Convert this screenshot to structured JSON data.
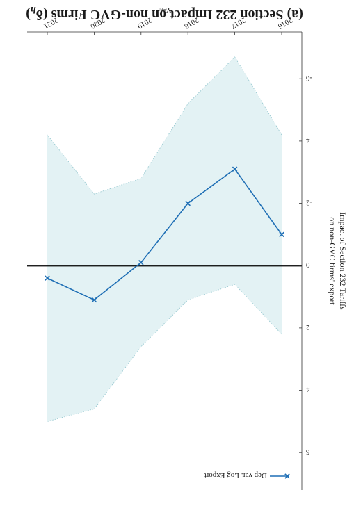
{
  "chart_data": {
    "type": "line",
    "title": "(a) Section 232 Impact on non-GVC Firms (δ",
    "title_subscript": "h",
    "title_suffix": ")",
    "xlabel": "Year",
    "ylabel_line1": "Impact of Section 232 Tariffs",
    "ylabel_line2": "on non-GVC firms' export",
    "x": [
      "2016",
      "2017",
      "2018",
      "2019",
      "2020",
      "2021"
    ],
    "series": [
      {
        "name": "Dep var. Log Export",
        "values": [
          -1.0,
          -3.1,
          -2.0,
          -0.1,
          1.1,
          0.4
        ],
        "ci_upper": [
          2.2,
          0.6,
          1.1,
          2.6,
          4.6,
          5.0
        ],
        "ci_lower": [
          -4.2,
          -6.7,
          -5.2,
          -2.8,
          -2.3,
          -4.2
        ],
        "color": "#1f6fb5",
        "band_color": "#e3f2f4"
      }
    ],
    "yticks": [
      6,
      4,
      2,
      0,
      -2,
      -4,
      -6
    ],
    "ytick_labels": [
      "6",
      "4",
      "2",
      "0",
      "-2",
      "-4",
      "-6"
    ],
    "ylim": [
      -7.5,
      7.2
    ],
    "zero_line": true,
    "grid": false,
    "legend_position": "top-left",
    "orientation": "rotated 180 degrees"
  }
}
